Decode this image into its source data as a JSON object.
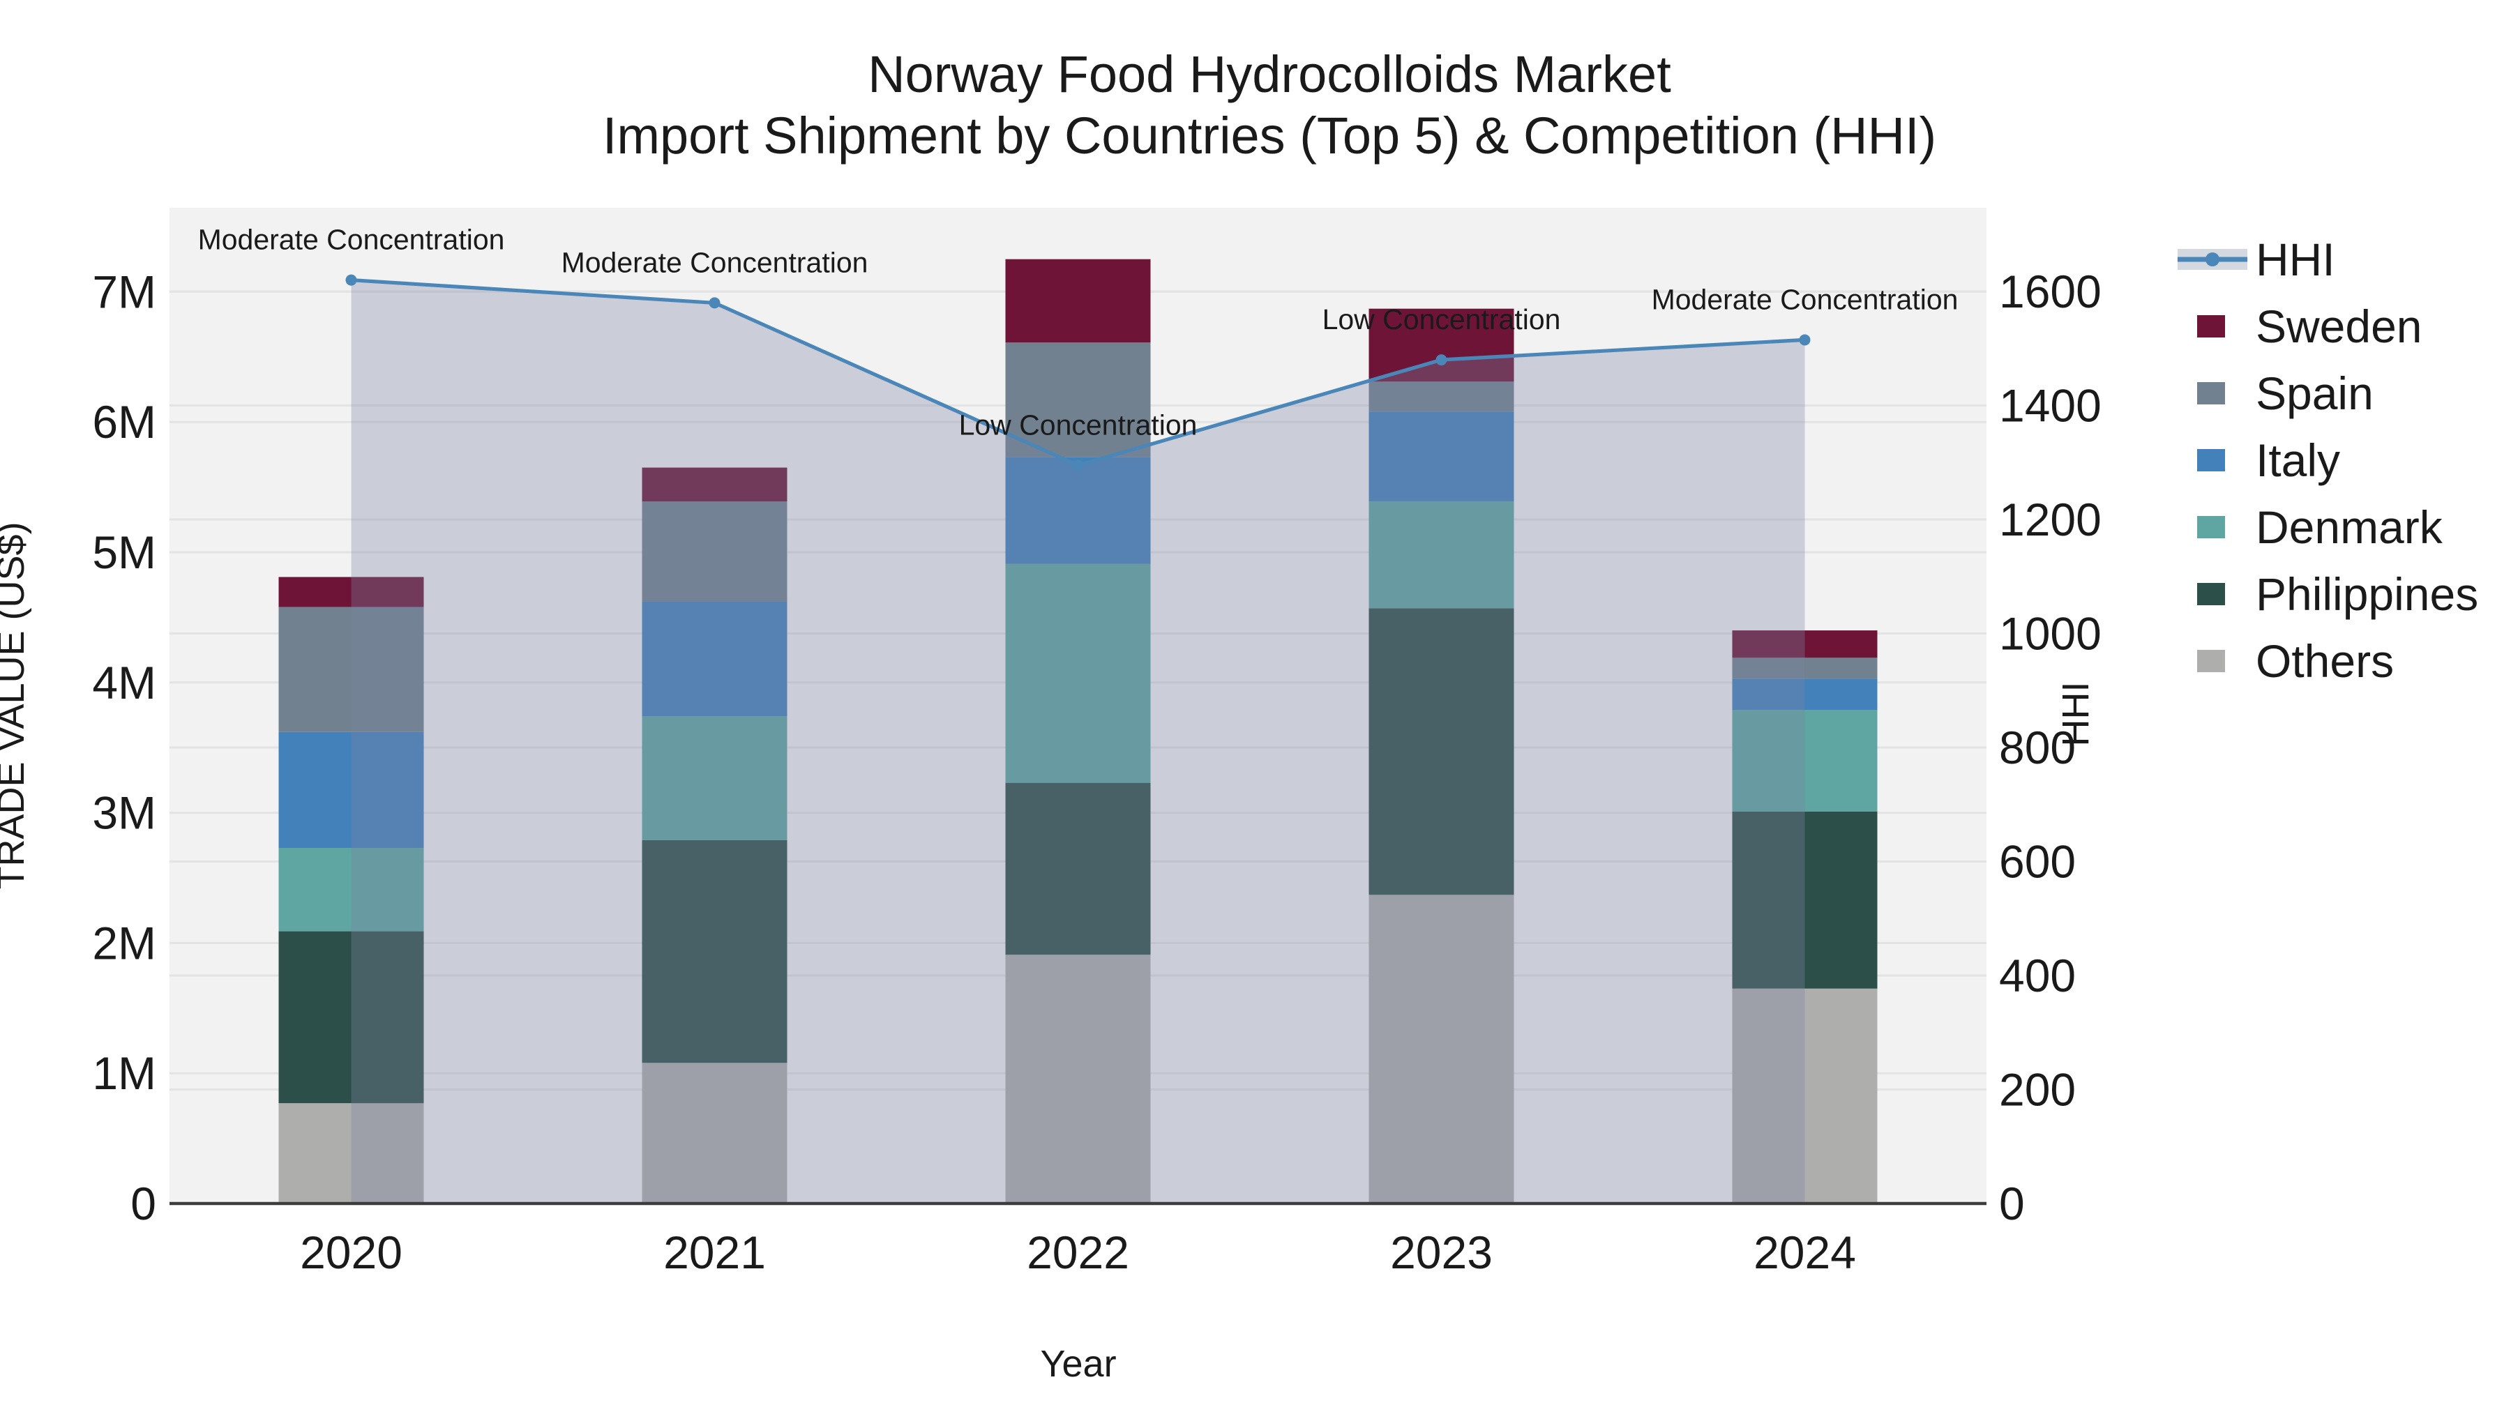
{
  "title": {
    "line1": "Norway Food Hydrocolloids Market",
    "line2": "Import Shipment by Countries (Top 5) & Competition (HHI)"
  },
  "axes": {
    "x_label": "Year",
    "y_left_label": "TRADE VALUE (US$)",
    "y_right_label": "HHI",
    "x_tick_labels": [
      "2020",
      "2021",
      "2022",
      "2023",
      "2024"
    ],
    "y_left_tick_labels": [
      "0",
      "1M",
      "2M",
      "3M",
      "4M",
      "5M",
      "6M",
      "7M"
    ],
    "y_right_tick_labels": [
      "0",
      "200",
      "400",
      "600",
      "800",
      "1000",
      "1200",
      "1400",
      "1600"
    ]
  },
  "legend": {
    "items": [
      {
        "label": "HHI",
        "type": "line",
        "color": "#4a86b8"
      },
      {
        "label": "Sweden",
        "type": "patch",
        "color": "#6e1537"
      },
      {
        "label": "Spain",
        "type": "patch",
        "color": "#71818f"
      },
      {
        "label": "Italy",
        "type": "patch",
        "color": "#4281ba"
      },
      {
        "label": "Denmark",
        "type": "patch",
        "color": "#5fa5a1"
      },
      {
        "label": "Philippines",
        "type": "patch",
        "color": "#2d4f49"
      },
      {
        "label": "Others",
        "type": "patch",
        "color": "#aeaeac"
      }
    ]
  },
  "colors": {
    "figure_bg": "#ffffff",
    "plot_bg": "#f2f2f2",
    "grid": "#e3e3e3",
    "spine": "#3c3c3c",
    "text": "#1a1a1a",
    "hhi_line": "#4a86b8",
    "hhi_area_fill": "rgba(123,135,163,0.33)",
    "hhi_legend_band": "#d4d8e1"
  },
  "chart_data": {
    "type": "bar+line",
    "title": "Norway Food Hydrocolloids Market — Import Shipment by Countries (Top 5) & Competition (HHI)",
    "xlabel": "Year",
    "ylabel_left": "TRADE VALUE (US$)",
    "ylabel_right": "HHI",
    "unit_left": "US$ millions (estimated from axis)",
    "categories": [
      "2020",
      "2021",
      "2022",
      "2023",
      "2024"
    ],
    "series": [
      {
        "name": "Sweden",
        "color": "#6e1537",
        "values": [
          0.23,
          0.26,
          0.64,
          0.56,
          0.21
        ]
      },
      {
        "name": "Spain",
        "color": "#71818f",
        "values": [
          0.96,
          0.77,
          0.88,
          0.23,
          0.16
        ]
      },
      {
        "name": "Italy",
        "color": "#4281ba",
        "values": [
          0.89,
          0.88,
          0.82,
          0.69,
          0.24
        ]
      },
      {
        "name": "Denmark",
        "color": "#5fa5a1",
        "values": [
          0.64,
          0.95,
          1.68,
          0.82,
          0.78
        ]
      },
      {
        "name": "Philippines",
        "color": "#2d4f49",
        "values": [
          1.32,
          1.71,
          1.32,
          2.2,
          1.36
        ]
      },
      {
        "name": "Others",
        "color": "#aeaeac",
        "values": [
          0.77,
          1.08,
          1.91,
          2.37,
          1.65
        ]
      }
    ],
    "stack_order_bottom_to_top": [
      "Others",
      "Philippines",
      "Denmark",
      "Italy",
      "Spain",
      "Sweden"
    ],
    "bar_totals": [
      4.81,
      5.65,
      7.25,
      6.87,
      4.4
    ],
    "hhi": {
      "name": "HHI",
      "axis": "right",
      "style": "line+markers+area",
      "values": [
        1620,
        1580,
        1295,
        1480,
        1515
      ]
    },
    "annotations": [
      {
        "year": "2020",
        "text": "Moderate Concentration"
      },
      {
        "year": "2021",
        "text": "Moderate Concentration"
      },
      {
        "year": "2022",
        "text": "Low Concentration"
      },
      {
        "year": "2023",
        "text": "Low Concentration"
      },
      {
        "year": "2024",
        "text": "Moderate Concentration"
      }
    ],
    "ylim_left": [
      0,
      7.65
    ],
    "ylim_right": [
      0,
      1747
    ],
    "grid": "horizontal",
    "legend_position": "right"
  }
}
